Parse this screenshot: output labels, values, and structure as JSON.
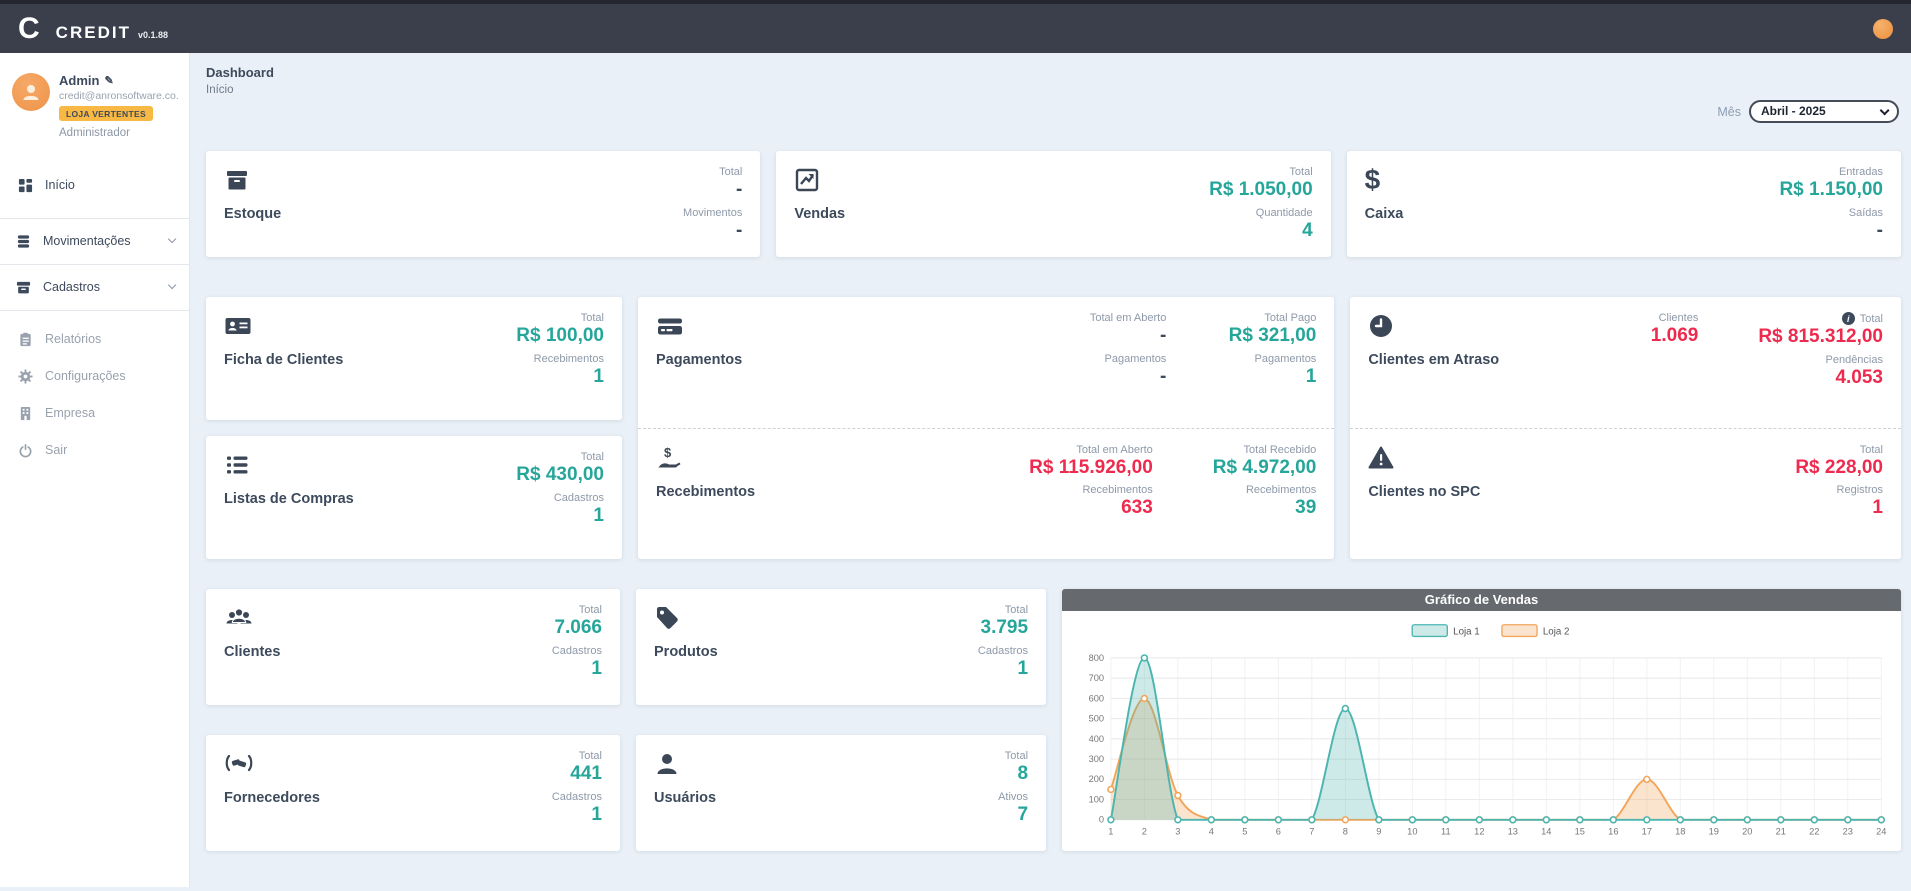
{
  "topbar": {
    "logo_letter": "C",
    "brand": "CREDIT",
    "version": "v0.1.88"
  },
  "user": {
    "name": "Admin",
    "email": "credit@anronsoftware.co...",
    "badge": "LOJA VERTENTES",
    "role": "Administrador"
  },
  "sidebar": {
    "items": [
      {
        "label": "Início"
      },
      {
        "label": "Movimentações"
      },
      {
        "label": "Cadastros"
      },
      {
        "label": "Relatórios"
      },
      {
        "label": "Configurações"
      },
      {
        "label": "Empresa"
      },
      {
        "label": "Sair"
      }
    ]
  },
  "page": {
    "title": "Dashboard",
    "subtitle": "Início"
  },
  "filter": {
    "label": "Mês",
    "value": "Abril - 2025"
  },
  "cards": {
    "estoque": {
      "title": "Estoque",
      "stats": [
        {
          "label": "Total",
          "value": "-",
          "tone": "dark"
        },
        {
          "label": "Movimentos",
          "value": "-",
          "tone": "dark"
        }
      ]
    },
    "vendas": {
      "title": "Vendas",
      "stats": [
        {
          "label": "Total",
          "value": "R$ 1.050,00",
          "tone": "green"
        },
        {
          "label": "Quantidade",
          "value": "4",
          "tone": "green"
        }
      ]
    },
    "caixa": {
      "title": "Caixa",
      "stats": [
        {
          "label": "Entradas",
          "value": "R$ 1.150,00",
          "tone": "green"
        },
        {
          "label": "Saídas",
          "value": "-",
          "tone": "dark"
        }
      ]
    },
    "ficha": {
      "title": "Ficha de Clientes",
      "stats": [
        {
          "label": "Total",
          "value": "R$ 100,00",
          "tone": "green"
        },
        {
          "label": "Recebimentos",
          "value": "1",
          "tone": "green"
        }
      ]
    },
    "listas": {
      "title": "Listas de Compras",
      "stats": [
        {
          "label": "Total",
          "value": "R$ 430,00",
          "tone": "green"
        },
        {
          "label": "Cadastros",
          "value": "1",
          "tone": "green"
        }
      ]
    },
    "pagamentos": {
      "title": "Pagamentos",
      "group1": [
        {
          "label": "Total em Aberto",
          "value": "-",
          "tone": "dark"
        },
        {
          "label": "Pagamentos",
          "value": "-",
          "tone": "dark"
        }
      ],
      "group2": [
        {
          "label": "Total Pago",
          "value": "R$ 321,00",
          "tone": "green"
        },
        {
          "label": "Pagamentos",
          "value": "1",
          "tone": "green"
        }
      ]
    },
    "recebimentos": {
      "title": "Recebimentos",
      "group1": [
        {
          "label": "Total em Aberto",
          "value": "R$ 115.926,00",
          "tone": "red"
        },
        {
          "label": "Recebimentos",
          "value": "633",
          "tone": "red"
        }
      ],
      "group2": [
        {
          "label": "Total Recebido",
          "value": "R$ 4.972,00",
          "tone": "green"
        },
        {
          "label": "Recebimentos",
          "value": "39",
          "tone": "green"
        }
      ]
    },
    "atraso": {
      "title": "Clientes em Atraso",
      "group1": [
        {
          "label": "Clientes",
          "value": "1.069",
          "tone": "red"
        }
      ],
      "group2": [
        {
          "label": "Total",
          "value": "R$ 815.312,00",
          "tone": "red",
          "info": "i"
        },
        {
          "label": "Pendências",
          "value": "4.053",
          "tone": "red"
        }
      ]
    },
    "spc": {
      "title": "Clientes no SPC",
      "stats": [
        {
          "label": "Total",
          "value": "R$ 228,00",
          "tone": "red"
        },
        {
          "label": "Registros",
          "value": "1",
          "tone": "red"
        }
      ]
    },
    "clientes": {
      "title": "Clientes",
      "stats": [
        {
          "label": "Total",
          "value": "7.066",
          "tone": "green"
        },
        {
          "label": "Cadastros",
          "value": "1",
          "tone": "green"
        }
      ]
    },
    "produtos": {
      "title": "Produtos",
      "stats": [
        {
          "label": "Total",
          "value": "3.795",
          "tone": "green"
        },
        {
          "label": "Cadastros",
          "value": "1",
          "tone": "green"
        }
      ]
    },
    "fornecedores": {
      "title": "Fornecedores",
      "stats": [
        {
          "label": "Total",
          "value": "441",
          "tone": "green"
        },
        {
          "label": "Cadastros",
          "value": "1",
          "tone": "green"
        }
      ]
    },
    "usuarios": {
      "title": "Usuários",
      "stats": [
        {
          "label": "Total",
          "value": "8",
          "tone": "green"
        },
        {
          "label": "Ativos",
          "value": "7",
          "tone": "green"
        }
      ]
    }
  },
  "chart_data": {
    "type": "area",
    "title": "Gráfico de Vendas",
    "x": [
      1,
      2,
      3,
      4,
      5,
      6,
      7,
      8,
      9,
      10,
      11,
      12,
      13,
      14,
      15,
      16,
      17,
      18,
      19,
      20,
      21,
      22,
      23,
      24
    ],
    "series": [
      {
        "name": "Loja 1",
        "color": "#4cb5b0",
        "fill": "rgba(76,181,176,0.28)",
        "values": [
          0,
          800,
          0,
          0,
          0,
          0,
          0,
          550,
          0,
          0,
          0,
          0,
          0,
          0,
          0,
          0,
          0,
          0,
          0,
          0,
          0,
          0,
          0,
          0
        ]
      },
      {
        "name": "Loja 2",
        "color": "#f3a55b",
        "fill": "rgba(243,165,91,0.30)",
        "values": [
          150,
          600,
          120,
          0,
          0,
          0,
          0,
          0,
          0,
          0,
          0,
          0,
          0,
          0,
          0,
          0,
          200,
          0,
          0,
          0,
          0,
          0,
          0,
          0
        ]
      }
    ],
    "ylim": [
      0,
      800
    ],
    "ytick_step": 100,
    "grid": true,
    "legend_position": "top-center"
  },
  "colors": {
    "positive": "#26a69a",
    "negative": "#ee2b4e",
    "neutral": "#3d4a5c",
    "badge": "#f8b844",
    "topbar": "#3a3f4b",
    "chart_header": "#66696e"
  }
}
